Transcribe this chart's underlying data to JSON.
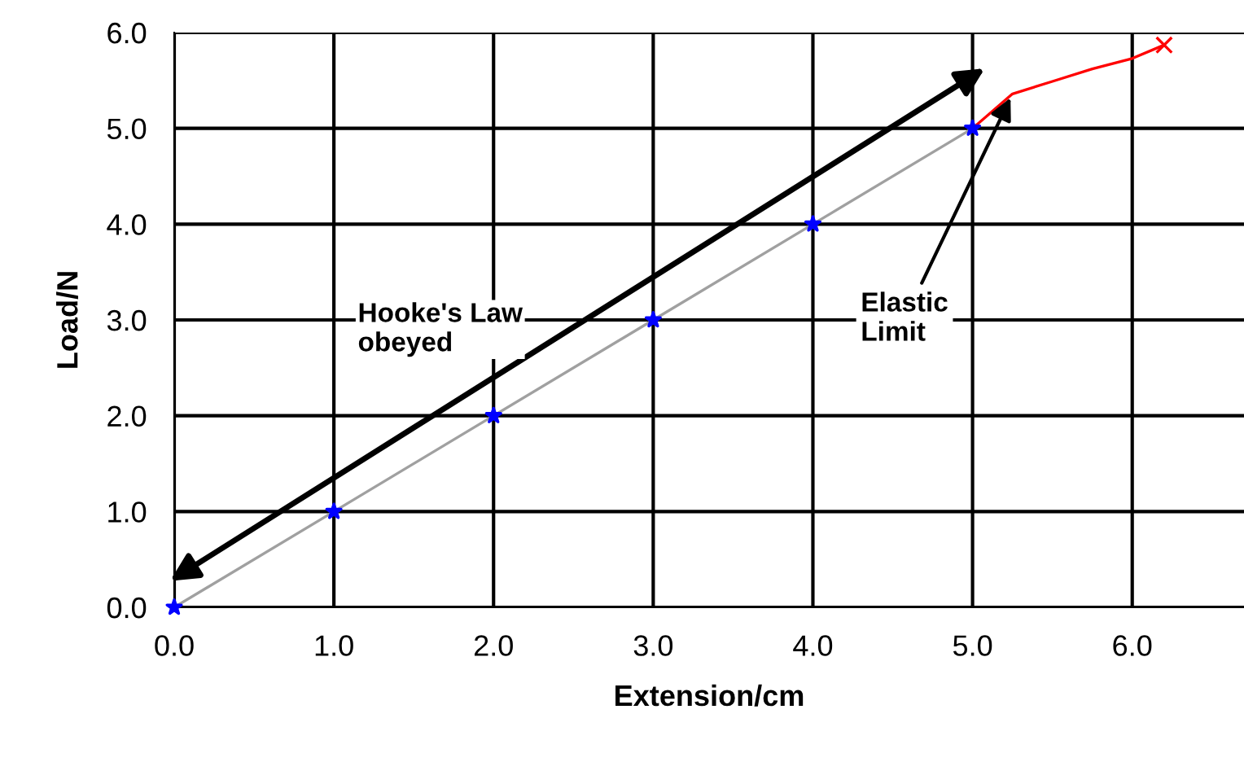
{
  "chart_data": {
    "type": "line",
    "xlabel": "Extension/cm",
    "ylabel": "Load/N",
    "x": [
      0,
      1,
      2,
      3,
      4,
      5
    ],
    "series": [
      {
        "color": "#a0a0a0",
        "marker": "none",
        "values": [
          0,
          1,
          2,
          3,
          4,
          5
        ]
      },
      {
        "type": "scatter",
        "color": "#0000ff",
        "marker": "star",
        "values": [
          0,
          1,
          2,
          3,
          4,
          5
        ]
      },
      {
        "color": "#ff0000",
        "marker": "none",
        "x": [
          5,
          5.25,
          5.5,
          5.75,
          6.0,
          6.2
        ],
        "values": [
          5.0,
          5.36,
          5.49,
          5.62,
          5.73,
          5.87
        ]
      },
      {
        "type": "scatter",
        "color": "#ff0000",
        "marker": "cross",
        "x": [
          6.2
        ],
        "values": [
          5.87
        ]
      }
    ],
    "annotations": [
      {
        "text": "Hooke's Law\nobeyed",
        "x": 2.5,
        "y": 2.5
      },
      {
        "text": "Elastic\nLimit",
        "x": 5.25,
        "y": 5.36
      }
    ],
    "xlim": [
      0,
      6.7
    ],
    "ylim": [
      0,
      6.0
    ],
    "xticks": [
      {
        "value": 0,
        "label": "0.0"
      },
      {
        "value": 1,
        "label": "1.0"
      },
      {
        "value": 2,
        "label": "2.0"
      },
      {
        "value": 3,
        "label": "3.0"
      },
      {
        "value": 4,
        "label": "4.0"
      },
      {
        "value": 5,
        "label": "5.0"
      },
      {
        "value": 6,
        "label": "6.0"
      }
    ],
    "yticks": [
      {
        "value": 0,
        "label": "0.0"
      },
      {
        "value": 1,
        "label": "1.0"
      },
      {
        "value": 2,
        "label": "2.0"
      },
      {
        "value": 3,
        "label": "3.0"
      },
      {
        "value": 4,
        "label": "4.0"
      },
      {
        "value": 5,
        "label": "5.0"
      },
      {
        "value": 6,
        "label": "6.0"
      }
    ],
    "grid": true,
    "legend": false
  }
}
